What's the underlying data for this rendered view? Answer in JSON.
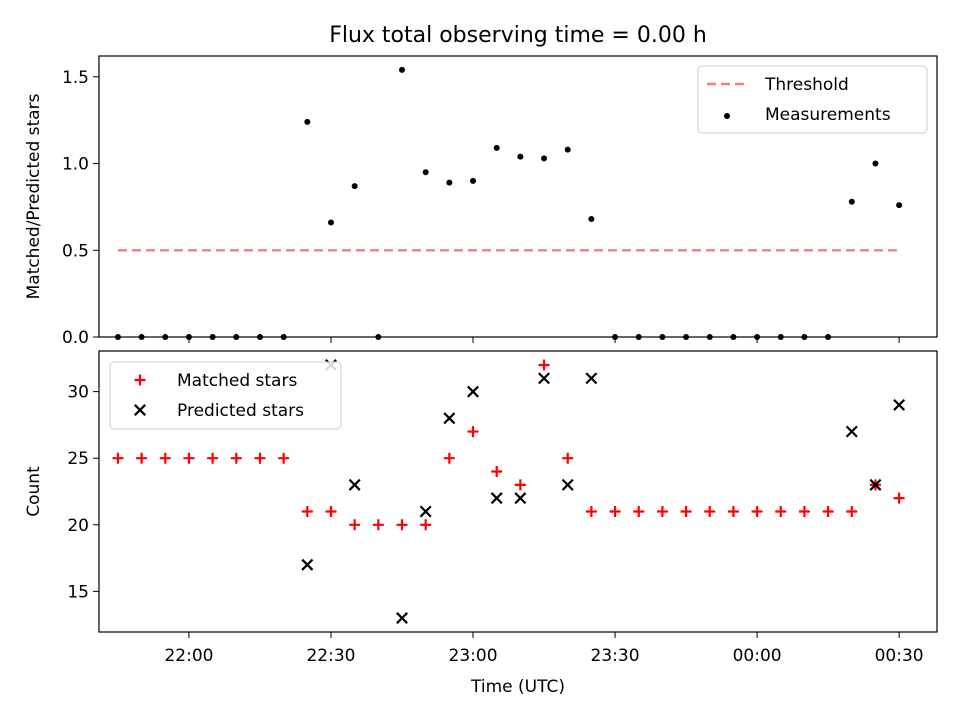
{
  "title": "Flux total observing time = 0.00 h",
  "x_ticks": [
    "22:00",
    "22:30",
    "23:00",
    "23:30",
    "00:00",
    "00:30"
  ],
  "colors": {
    "threshold": "#f08080",
    "matched": "#ff0000",
    "predicted": "#000000",
    "measurement": "#000000"
  },
  "chart_data": [
    {
      "type": "scatter",
      "ylabel": "Matched/Predicted stars",
      "ylim": [
        0,
        1.62
      ],
      "y_ticks": [
        "0.0",
        "0.5",
        "1.0",
        "1.5"
      ],
      "xlim": [
        "21:41",
        "00:38"
      ],
      "legend": {
        "position": "upper right",
        "entries": [
          "Threshold",
          "Measurements"
        ]
      },
      "series": [
        {
          "name": "Threshold",
          "kind": "dashed-line",
          "x": [
            "21:45",
            "00:30"
          ],
          "y": [
            0.5,
            0.5
          ]
        },
        {
          "name": "Measurements",
          "kind": "dot",
          "x": [
            "21:45",
            "21:50",
            "21:55",
            "22:00",
            "22:05",
            "22:10",
            "22:15",
            "22:20",
            "22:25",
            "22:30",
            "22:35",
            "22:40",
            "22:45",
            "22:50",
            "22:55",
            "23:00",
            "23:05",
            "23:10",
            "23:15",
            "23:20",
            "23:25",
            "23:30",
            "23:35",
            "23:40",
            "23:45",
            "23:50",
            "23:55",
            "00:00",
            "00:05",
            "00:10",
            "00:15",
            "00:20",
            "00:25",
            "00:30"
          ],
          "y": [
            0,
            0,
            0,
            0,
            0,
            0,
            0,
            0,
            1.24,
            0.66,
            0.87,
            0,
            1.54,
            0.95,
            0.89,
            0.9,
            1.09,
            1.04,
            1.03,
            1.08,
            0.68,
            0,
            0,
            0,
            0,
            0,
            0,
            0,
            0,
            0,
            0,
            0.78,
            1.0,
            0.76
          ]
        }
      ]
    },
    {
      "type": "scatter",
      "xlabel": "Time (UTC)",
      "ylabel": "Count",
      "ylim": [
        11.95,
        33.05
      ],
      "y_ticks": [
        "15",
        "20",
        "25",
        "30"
      ],
      "xlim": [
        "21:41",
        "00:38"
      ],
      "legend": {
        "position": "upper left",
        "entries": [
          "Matched stars",
          "Predicted stars"
        ]
      },
      "series": [
        {
          "name": "Matched stars",
          "marker": "plus",
          "x": [
            "21:45",
            "21:50",
            "21:55",
            "22:00",
            "22:05",
            "22:10",
            "22:15",
            "22:20",
            "22:25",
            "22:30",
            "22:35",
            "22:40",
            "22:45",
            "22:50",
            "22:55",
            "23:00",
            "23:05",
            "23:10",
            "23:15",
            "23:20",
            "23:25",
            "23:30",
            "23:35",
            "23:40",
            "23:45",
            "23:50",
            "23:55",
            "00:00",
            "00:05",
            "00:10",
            "00:15",
            "00:20",
            "00:25",
            "00:30"
          ],
          "y": [
            25,
            25,
            25,
            25,
            25,
            25,
            25,
            25,
            21,
            21,
            20,
            20,
            20,
            20,
            25,
            27,
            24,
            23,
            32,
            25,
            21,
            21,
            21,
            21,
            21,
            21,
            21,
            21,
            21,
            21,
            21,
            21,
            23,
            22
          ]
        },
        {
          "name": "Predicted stars",
          "marker": "x",
          "x": [
            "22:25",
            "22:30",
            "22:35",
            "22:45",
            "22:50",
            "22:55",
            "23:00",
            "23:05",
            "23:10",
            "23:15",
            "23:20",
            "23:25",
            "00:20",
            "00:25",
            "00:30"
          ],
          "y": [
            17,
            32,
            23,
            13,
            21,
            28,
            30,
            22,
            22,
            31,
            23,
            31,
            27,
            23,
            29
          ]
        }
      ]
    }
  ]
}
